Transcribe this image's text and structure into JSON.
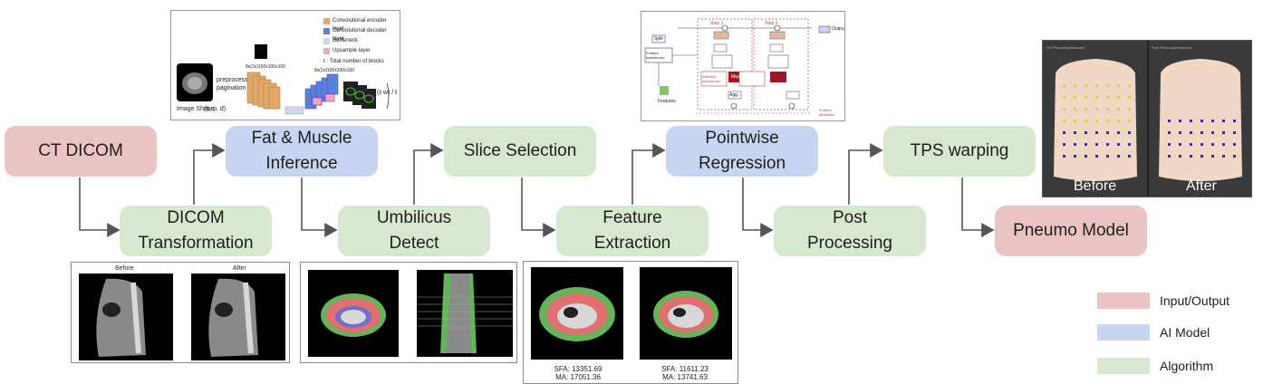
{
  "nodes": {
    "ct_dicom": "CT DICOM",
    "dicom_transformation": "DICOM Transformation",
    "fat_muscle_inference": "Fat & Muscle Inference",
    "umbilicus_detect": "Umbilicus Detect",
    "slice_selection": "Slice Selection",
    "feature_extraction": "Feature Extraction",
    "pointwise_regression": "Pointwise Regression",
    "post_processing": "Post Processing",
    "tps_warping": "TPS warping",
    "pneumo_model": "Pneumo Model"
  },
  "legend": [
    {
      "label": "Input/Output",
      "color": "#ebc3c3"
    },
    {
      "label": "AI Model",
      "color": "#c8d5f2"
    },
    {
      "label": "Algorithm",
      "color": "#d8e7cf"
    }
  ],
  "ct_transform_panel": {
    "before": "Before",
    "after": "After"
  },
  "feature_panel": {
    "left_sfa": "SFA: 13351.69",
    "left_ma": "MA: 17051.36",
    "right_sfa": "SFA: 11611.23",
    "right_ma": "MA: 13741.63"
  },
  "warp_panel": {
    "before": "Before",
    "after": "After",
    "left_title": "Pre Pneumoperitoneum",
    "right_title": "Post Pneumoperitoneum"
  },
  "unet_panel": {
    "legend": [
      "Convolutional encoder layer",
      "Convolutional decoder layer",
      "Bottleneck",
      "Upsample layer"
    ],
    "note": "ℓ : Total number of blocks",
    "input_label": "Image Shape",
    "input_dims": "(h, p, d)",
    "preprocess": "preprocessing pagination",
    "shape_a": "8x(2x)100x100x100",
    "shape_b": "8x(2x)100x100x100",
    "formula": "∑(ℓ·w) / ℓ"
  },
  "tabnet_panel": {
    "step1": "Step 1",
    "step2": "Step 2",
    "output": "Output",
    "features": "Features",
    "split": "Split",
    "feature_transformer": "Feature transformer",
    "attentive_transformer": "Attentive transformer",
    "mask": "Mask",
    "agg": "Agg.",
    "feature_attribution": "Feature attribution"
  }
}
